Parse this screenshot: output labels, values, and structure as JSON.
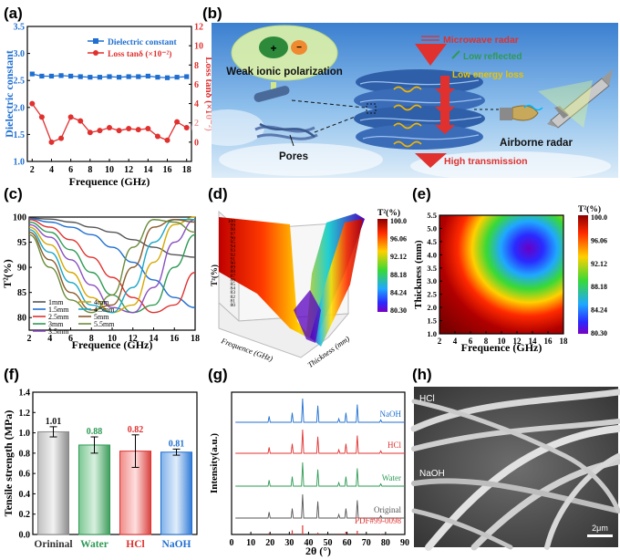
{
  "panel_labels": [
    "(a)",
    "(b)",
    "(c)",
    "(d)",
    "(e)",
    "(f)",
    "(g)",
    "(h)"
  ],
  "colors": {
    "blue": "#1f6fd1",
    "red": "#e0312f",
    "green": "#2e9a54",
    "gray": "#666666"
  },
  "chart_data": [
    {
      "id": "a",
      "type": "line",
      "title": "",
      "xlabel": "Frequence (GHz)",
      "ylabel": "Dielectric constant",
      "y2label": "Loss tanδ (×10⁻²)",
      "xlim": [
        1.5,
        18.5
      ],
      "ylim": [
        1.0,
        3.5
      ],
      "y2lim": [
        -2,
        12
      ],
      "xticks": [
        "2",
        "4",
        "6",
        "8",
        "10",
        "12",
        "14",
        "16",
        "18"
      ],
      "yticks": [
        "1.0",
        "1.5",
        "2.0",
        "2.5",
        "3.0",
        "3.5"
      ],
      "y2ticks": [
        "0",
        "2",
        "4",
        "6",
        "8",
        "10",
        "12"
      ],
      "legend": "top-right",
      "series": [
        {
          "name": "Dielectric constant",
          "axis": "left",
          "color": "#1f6fd1",
          "marker": "square",
          "x": [
            2,
            3,
            4,
            5,
            6,
            7,
            8,
            9,
            10,
            11,
            12,
            13,
            14,
            15,
            16,
            17,
            18
          ],
          "y": [
            2.62,
            2.58,
            2.58,
            2.59,
            2.58,
            2.57,
            2.56,
            2.56,
            2.57,
            2.56,
            2.57,
            2.57,
            2.58,
            2.56,
            2.55,
            2.56,
            2.57
          ]
        },
        {
          "name": "Loss tanδ (×10⁻²)",
          "axis": "right",
          "color": "#e0312f",
          "marker": "circle",
          "x": [
            2,
            3,
            4,
            5,
            6,
            7,
            8,
            9,
            10,
            11,
            12,
            13,
            14,
            15,
            16,
            17,
            18
          ],
          "y": [
            4.0,
            2.6,
            0.0,
            0.4,
            2.6,
            2.2,
            1.0,
            1.2,
            1.5,
            1.2,
            1.4,
            1.3,
            1.4,
            0.6,
            0.2,
            2.1,
            1.5
          ]
        }
      ]
    },
    {
      "id": "c",
      "type": "line",
      "xlabel": "Frequence (GHz)",
      "ylabel": "T²(%)",
      "xlim": [
        2,
        18
      ],
      "ylim": [
        77.5,
        100
      ],
      "xticks": [
        "2",
        "4",
        "6",
        "8",
        "10",
        "12",
        "14",
        "16",
        "18"
      ],
      "yticks": [
        "80",
        "85",
        "90",
        "95",
        "100"
      ],
      "legend": "bottom-left",
      "series": [
        {
          "name": "1mm",
          "color": "#555555",
          "x": [
            2,
            4,
            6,
            8,
            10,
            12,
            14,
            16,
            18
          ],
          "y": [
            99.8,
            99.6,
            99.0,
            98.0,
            97.0,
            95.5,
            94.0,
            92.5,
            92.0
          ]
        },
        {
          "name": "1.5mm",
          "color": "#1f6fd1",
          "x": [
            2,
            4,
            6,
            8,
            10,
            12,
            14,
            16,
            18
          ],
          "y": [
            99.7,
            99.0,
            98.0,
            96.5,
            94.0,
            91.0,
            87.5,
            84.0,
            82.0
          ]
        },
        {
          "name": "2.5mm",
          "color": "#e0312f",
          "x": [
            2,
            4,
            6,
            8,
            10,
            12,
            14,
            16,
            18
          ],
          "y": [
            99.5,
            98.0,
            95.5,
            92.0,
            88.0,
            84.0,
            81.0,
            82.5,
            89.0
          ]
        },
        {
          "name": "3mm",
          "color": "#2e9a54",
          "x": [
            2,
            4,
            6,
            8,
            10,
            12,
            14,
            16,
            18
          ],
          "y": [
            99.0,
            97.0,
            93.5,
            89.0,
            84.5,
            81.0,
            82.5,
            90.0,
            96.5
          ]
        },
        {
          "name": "3.5mm",
          "color": "#8a4fc1",
          "x": [
            2,
            4,
            6,
            8,
            10,
            12,
            14,
            16,
            18
          ],
          "y": [
            98.5,
            96.0,
            91.5,
            86.5,
            82.0,
            81.0,
            86.0,
            95.0,
            99.5
          ]
        },
        {
          "name": "4mm",
          "color": "#d6a800",
          "x": [
            2,
            4,
            6,
            8,
            10,
            12,
            14,
            16,
            18
          ],
          "y": [
            98.0,
            94.5,
            89.0,
            84.0,
            81.0,
            82.5,
            91.0,
            98.5,
            100.0
          ]
        },
        {
          "name": "4.5mm",
          "color": "#1aa7c7",
          "x": [
            2,
            4,
            6,
            8,
            10,
            12,
            14,
            16,
            18
          ],
          "y": [
            97.5,
            93.0,
            87.0,
            82.5,
            81.0,
            86.0,
            95.0,
            99.5,
            99.5
          ]
        },
        {
          "name": "5mm",
          "color": "#8a5a2b",
          "x": [
            2,
            4,
            6,
            8,
            10,
            12,
            14,
            16,
            18
          ],
          "y": [
            97.0,
            91.5,
            85.0,
            81.5,
            82.5,
            90.0,
            98.0,
            99.5,
            99.0
          ]
        },
        {
          "name": "5.5mm",
          "color": "#6a8c3a",
          "x": [
            2,
            4,
            6,
            8,
            10,
            12,
            14,
            16,
            18
          ],
          "y": [
            96.5,
            90.0,
            83.5,
            81.0,
            84.5,
            94.0,
            99.5,
            99.0,
            97.0
          ]
        }
      ]
    },
    {
      "id": "d",
      "type": "surface",
      "xlabel": "Frequence (GHz)",
      "ylabel": "Thickness (mm)",
      "zlabel": "T²(%)",
      "zticks": [
        "100",
        "99",
        "98",
        "97",
        "96",
        "95",
        "94",
        "93",
        "92",
        "91",
        "90",
        "89",
        "88",
        "87",
        "86",
        "85",
        "84",
        "83",
        "82",
        "81",
        "80"
      ],
      "colorbar_title": "T²(%)",
      "colorbar_ticks": [
        "100.0",
        "96.06",
        "92.12",
        "88.18",
        "84.24",
        "80.30"
      ]
    },
    {
      "id": "e",
      "type": "heatmap",
      "xlabel": "Frequence (GHz)",
      "ylabel": "Thickness (mm)",
      "xlim": [
        2,
        18
      ],
      "ylim": [
        1.0,
        5.5
      ],
      "xticks": [
        "2",
        "4",
        "6",
        "8",
        "10",
        "12",
        "14",
        "16",
        "18"
      ],
      "yticks": [
        "1.0",
        "1.5",
        "2.0",
        "2.5",
        "3.0",
        "3.5",
        "4.0",
        "4.5",
        "5.0",
        "5.5"
      ],
      "colorbar_title": "T²(%)",
      "colorbar_ticks": [
        "100.0",
        "96.06",
        "92.12",
        "88.18",
        "84.24",
        "80.30"
      ],
      "zlim": [
        80.3,
        100.0
      ]
    },
    {
      "id": "f",
      "type": "bar",
      "xlabel": "",
      "ylabel": "Tensile strength (MPa)",
      "ylim": [
        0,
        1.4
      ],
      "yticks": [
        "0.0",
        "0.2",
        "0.4",
        "0.6",
        "0.8",
        "1.0",
        "1.2",
        "1.4"
      ],
      "categories": [
        "Orininal",
        "Water",
        "HCl",
        "NaOH"
      ],
      "values": [
        1.01,
        0.88,
        0.82,
        0.81
      ],
      "value_labels": [
        "1.01",
        "0.88",
        "0.82",
        "0.81"
      ],
      "errors": [
        0.05,
        0.08,
        0.16,
        0.03
      ],
      "colors": [
        "#888888",
        "#2e9a54",
        "#e0312f",
        "#1f6fd1"
      ]
    },
    {
      "id": "g",
      "type": "line",
      "xlabel": "2θ (°)",
      "ylabel": "Intensity(a.u.)",
      "xlim": [
        0,
        90
      ],
      "xticks": [
        "0",
        "10",
        "20",
        "30",
        "40",
        "50",
        "60",
        "70",
        "80",
        "90"
      ],
      "peaks_2theta": [
        19.5,
        31.5,
        36.9,
        44.8,
        55.7,
        59.4,
        65.3,
        77.5
      ],
      "ref_rel_heights": [
        0.15,
        0.45,
        1.0,
        0.2,
        0.1,
        0.3,
        0.4,
        0.06
      ],
      "series": [
        {
          "name": "NaOH",
          "color": "#1f6fd1",
          "rel_heights": [
            0.25,
            0.4,
            1.0,
            0.7,
            0.15,
            0.4,
            0.75,
            0.1
          ]
        },
        {
          "name": "HCl",
          "color": "#e0312f",
          "rel_heights": [
            0.25,
            0.4,
            1.0,
            0.7,
            0.15,
            0.4,
            0.75,
            0.1
          ]
        },
        {
          "name": "Water",
          "color": "#2e9a54",
          "rel_heights": [
            0.25,
            0.4,
            1.0,
            0.7,
            0.15,
            0.4,
            0.75,
            0.1
          ]
        },
        {
          "name": "Original",
          "color": "#555555",
          "rel_heights": [
            0.25,
            0.4,
            1.0,
            0.7,
            0.15,
            0.4,
            0.75,
            0.1
          ]
        }
      ],
      "reference_label": "PDF#99-0098"
    }
  ],
  "panel_b": {
    "labels": {
      "weak_ionic": "Weak ionic polarization",
      "pores": "Pores",
      "microwave": "Microwave radar",
      "low_reflected": "Low reflected",
      "low_energy": "Low energy loss",
      "airborne": "Airborne radar",
      "high_transmission": "High transmission"
    }
  },
  "panel_h": {
    "labels": {
      "hcl": "HCl",
      "naoh": "NaOH",
      "scale": "2μm"
    }
  }
}
